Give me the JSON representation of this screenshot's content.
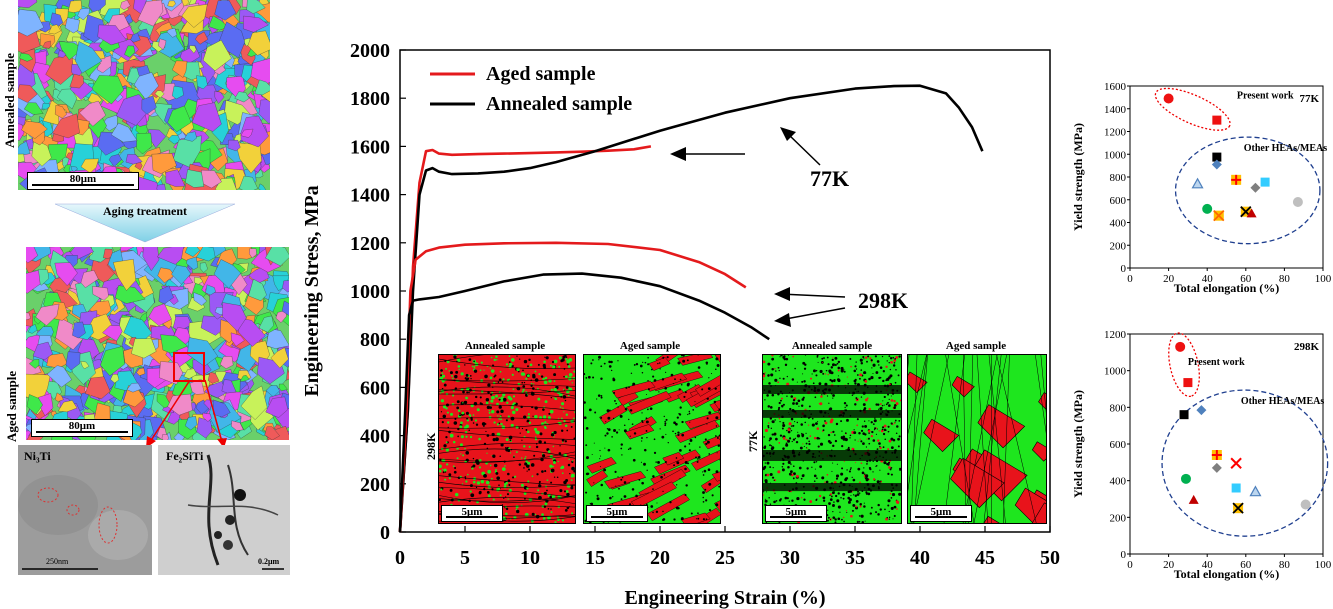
{
  "left_panel": {
    "annealed_label": "Annealed sample",
    "aged_label": "Aged sample",
    "scale_annealed": "80μm",
    "scale_aged": "80μm",
    "arrow_label": "Aging treatment",
    "tem_left_label": "Ni₃Ti",
    "tem_left_scale": "250nm",
    "tem_right_label": "Fe₂SiTi",
    "tem_right_scale": "0.2μm"
  },
  "insets": {
    "annealed_298": "Annealed sample",
    "aged_298": "Aged sample",
    "annealed_77": "Annealed sample",
    "aged_77": "Aged sample",
    "label_298": "298K",
    "label_77": "77K",
    "scale_1": "5μm",
    "scale_2": "5μm",
    "scale_3": "5μm",
    "scale_4": "5μm",
    "colors": {
      "phase_a": "#e8131b",
      "phase_b": "#1ee61e",
      "boundary": "#000000"
    }
  },
  "chart_data": [
    {
      "type": "line",
      "xlabel": "Engineering Strain (%)",
      "ylabel": "Engineering Stress, MPa",
      "xlim": [
        0,
        50
      ],
      "ylim": [
        0,
        2000
      ],
      "xticks": [
        0,
        5,
        10,
        15,
        20,
        25,
        30,
        35,
        40,
        45,
        50
      ],
      "yticks": [
        0,
        200,
        400,
        600,
        800,
        1000,
        1200,
        1400,
        1600,
        1800,
        2000
      ],
      "legend_position": "top-left",
      "annotations": [
        "77K",
        "298K"
      ],
      "series": [
        {
          "name": "Aged sample",
          "color": "#e41a1c",
          "temperature": "77K",
          "x": [
            0,
            0.6,
            1.0,
            1.5,
            2.0,
            2.5,
            3.0,
            4,
            6,
            8,
            10,
            12,
            14,
            16,
            18,
            19.3
          ],
          "y": [
            0,
            500,
            1100,
            1450,
            1580,
            1585,
            1570,
            1565,
            1568,
            1570,
            1572,
            1575,
            1578,
            1582,
            1588,
            1600
          ]
        },
        {
          "name": "Annealed sample",
          "color": "#000000",
          "temperature": "77K",
          "x": [
            0,
            0.6,
            1.0,
            1.5,
            2.0,
            2.5,
            3.0,
            4,
            6,
            8,
            10,
            12,
            15,
            20,
            25,
            30,
            35,
            38,
            40,
            42,
            43,
            44,
            44.8
          ],
          "y": [
            0,
            500,
            1000,
            1400,
            1500,
            1510,
            1495,
            1485,
            1488,
            1495,
            1510,
            1535,
            1580,
            1665,
            1740,
            1800,
            1840,
            1850,
            1852,
            1820,
            1760,
            1680,
            1580
          ]
        },
        {
          "name": "Aged sample",
          "color": "#e41a1c",
          "temperature": "298K",
          "x": [
            0,
            0.5,
            0.8,
            1.2,
            2,
            3,
            5,
            8,
            12,
            16,
            20,
            23,
            25,
            26.6
          ],
          "y": [
            0,
            500,
            1000,
            1130,
            1165,
            1180,
            1192,
            1198,
            1200,
            1195,
            1170,
            1120,
            1070,
            1015
          ]
        },
        {
          "name": "Annealed sample",
          "color": "#000000",
          "temperature": "298K",
          "x": [
            0,
            0.4,
            0.7,
            1.0,
            1.5,
            3,
            5,
            8,
            11,
            14,
            17,
            20,
            23,
            25,
            27,
            28.4
          ],
          "y": [
            0,
            500,
            900,
            960,
            965,
            975,
            1000,
            1040,
            1068,
            1072,
            1055,
            1020,
            960,
            910,
            850,
            800
          ]
        }
      ]
    },
    {
      "type": "scatter",
      "annotation": "77K",
      "xlabel": "Total elongation (%)",
      "ylabel": "Yield strength (MPa)",
      "xlim": [
        0,
        100
      ],
      "ylim": [
        0,
        1600
      ],
      "xticks": [
        0,
        20,
        40,
        60,
        80,
        100
      ],
      "yticks": [
        0,
        200,
        400,
        600,
        800,
        1000,
        1200,
        1400,
        1600
      ],
      "group_labels": [
        "Present work",
        "Other HEAs/MEAs"
      ],
      "present": [
        {
          "x": 20,
          "y": 1490,
          "marker": "circle"
        },
        {
          "x": 45,
          "y": 1300,
          "marker": "square"
        }
      ],
      "others": [
        {
          "x": 45,
          "y": 975,
          "marker": "square",
          "color": "#000000"
        },
        {
          "x": 45,
          "y": 910,
          "marker": "diamond",
          "color": "#4f81bd"
        },
        {
          "x": 35,
          "y": 740,
          "marker": "triangle-open",
          "color": "#4f81bd"
        },
        {
          "x": 55,
          "y": 775,
          "marker": "plus-square",
          "color": "#ff0000"
        },
        {
          "x": 70,
          "y": 755,
          "marker": "square",
          "color": "#33ccff"
        },
        {
          "x": 65,
          "y": 705,
          "marker": "diamond",
          "color": "#7f7f7f"
        },
        {
          "x": 40,
          "y": 520,
          "marker": "circle",
          "color": "#00b050"
        },
        {
          "x": 46,
          "y": 460,
          "marker": "x-square",
          "color": "#ff6600"
        },
        {
          "x": 60,
          "y": 495,
          "marker": "x-square",
          "color": "#000000"
        },
        {
          "x": 63,
          "y": 480,
          "marker": "triangle",
          "color": "#c00000"
        },
        {
          "x": 87,
          "y": 580,
          "marker": "circle",
          "color": "#bfbfbf"
        }
      ]
    },
    {
      "type": "scatter",
      "annotation": "298K",
      "xlabel": "Total elongation (%)",
      "ylabel": "Yield strength (MPa)",
      "xlim": [
        0,
        100
      ],
      "ylim": [
        0,
        1200
      ],
      "xticks": [
        0,
        20,
        40,
        60,
        80,
        100
      ],
      "yticks": [
        0,
        200,
        400,
        600,
        800,
        1000,
        1200
      ],
      "group_labels": [
        "Present work",
        "Other HEAs/MEAs"
      ],
      "present": [
        {
          "x": 26,
          "y": 1130,
          "marker": "circle"
        },
        {
          "x": 30,
          "y": 935,
          "marker": "square"
        }
      ],
      "others": [
        {
          "x": 28,
          "y": 760,
          "marker": "square",
          "color": "#000000"
        },
        {
          "x": 37,
          "y": 785,
          "marker": "diamond",
          "color": "#4f81bd"
        },
        {
          "x": 45,
          "y": 540,
          "marker": "plus-square",
          "color": "#ff0000"
        },
        {
          "x": 45,
          "y": 470,
          "marker": "diamond",
          "color": "#7f7f7f"
        },
        {
          "x": 55,
          "y": 495,
          "marker": "x-mark",
          "color": "#ff0000"
        },
        {
          "x": 29,
          "y": 410,
          "marker": "circle",
          "color": "#00b050"
        },
        {
          "x": 55,
          "y": 360,
          "marker": "square",
          "color": "#33ccff"
        },
        {
          "x": 65,
          "y": 340,
          "marker": "triangle-open",
          "color": "#4f81bd"
        },
        {
          "x": 33,
          "y": 295,
          "marker": "triangle",
          "color": "#c00000"
        },
        {
          "x": 56,
          "y": 250,
          "marker": "x-square",
          "color": "#000000"
        },
        {
          "x": 91,
          "y": 270,
          "marker": "circle",
          "color": "#bfbfbf"
        }
      ]
    }
  ]
}
